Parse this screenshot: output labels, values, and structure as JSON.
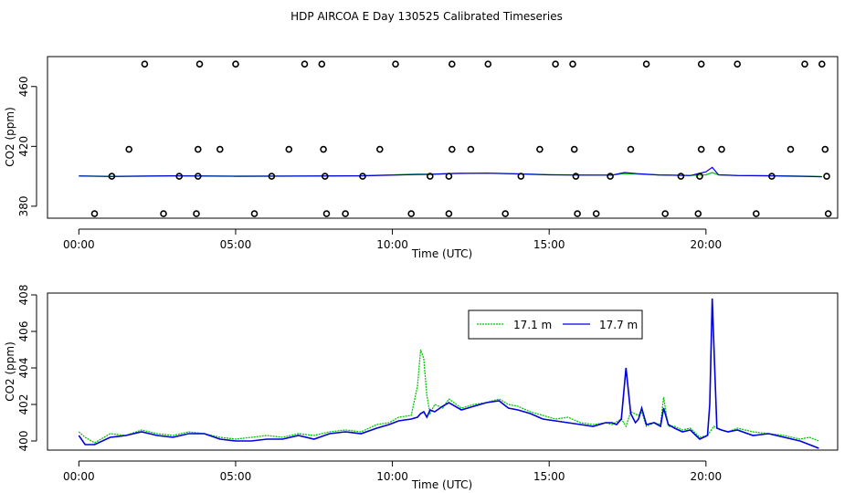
{
  "figure_title": "HDP AIRCOA E  Day 130525  Calibrated Timeseries",
  "colors": {
    "series_17_1m": "#00c800",
    "series_17_7m": "#0000dd",
    "points": "#000000",
    "axes": "#000000"
  },
  "chart_data": [
    {
      "type": "scatter",
      "xlabel": "Time (UTC)",
      "ylabel": "CO2 (ppm)",
      "xlim": [
        -1,
        24.2
      ],
      "ylim": [
        372,
        480
      ],
      "x_ticks": [
        0,
        5,
        10,
        15,
        20
      ],
      "x_tick_labels": [
        "00:00",
        "05:00",
        "10:00",
        "15:00",
        "20:00"
      ],
      "y_ticks": [
        380,
        420,
        460
      ],
      "y_tick_labels": [
        "380",
        "420",
        "460"
      ],
      "grid": false,
      "points_x_unit": "hours UTC",
      "calibration_points": [
        {
          "x": 2.1,
          "y": 475
        },
        {
          "x": 3.85,
          "y": 475
        },
        {
          "x": 5.0,
          "y": 475
        },
        {
          "x": 7.2,
          "y": 475
        },
        {
          "x": 7.75,
          "y": 475
        },
        {
          "x": 10.1,
          "y": 475
        },
        {
          "x": 11.9,
          "y": 475
        },
        {
          "x": 13.05,
          "y": 475
        },
        {
          "x": 15.2,
          "y": 475
        },
        {
          "x": 15.75,
          "y": 475
        },
        {
          "x": 18.1,
          "y": 475
        },
        {
          "x": 19.85,
          "y": 475
        },
        {
          "x": 21.0,
          "y": 475
        },
        {
          "x": 23.15,
          "y": 475
        },
        {
          "x": 23.7,
          "y": 475
        },
        {
          "x": 1.6,
          "y": 418
        },
        {
          "x": 3.8,
          "y": 418
        },
        {
          "x": 4.5,
          "y": 418
        },
        {
          "x": 6.7,
          "y": 418
        },
        {
          "x": 7.8,
          "y": 418
        },
        {
          "x": 9.6,
          "y": 418
        },
        {
          "x": 11.9,
          "y": 418
        },
        {
          "x": 12.5,
          "y": 418
        },
        {
          "x": 14.7,
          "y": 418
        },
        {
          "x": 15.8,
          "y": 418
        },
        {
          "x": 17.6,
          "y": 418
        },
        {
          "x": 19.85,
          "y": 418
        },
        {
          "x": 20.5,
          "y": 418
        },
        {
          "x": 22.7,
          "y": 418
        },
        {
          "x": 23.8,
          "y": 418
        },
        {
          "x": 1.05,
          "y": 400
        },
        {
          "x": 3.2,
          "y": 400
        },
        {
          "x": 3.8,
          "y": 400
        },
        {
          "x": 6.15,
          "y": 400
        },
        {
          "x": 7.85,
          "y": 400
        },
        {
          "x": 9.05,
          "y": 400
        },
        {
          "x": 11.2,
          "y": 400
        },
        {
          "x": 11.8,
          "y": 400
        },
        {
          "x": 14.1,
          "y": 400
        },
        {
          "x": 15.85,
          "y": 400
        },
        {
          "x": 16.95,
          "y": 400
        },
        {
          "x": 19.2,
          "y": 400
        },
        {
          "x": 19.8,
          "y": 400
        },
        {
          "x": 22.1,
          "y": 400
        },
        {
          "x": 23.85,
          "y": 400
        },
        {
          "x": 0.5,
          "y": 375
        },
        {
          "x": 2.7,
          "y": 375
        },
        {
          "x": 3.75,
          "y": 375
        },
        {
          "x": 5.6,
          "y": 375
        },
        {
          "x": 7.9,
          "y": 375
        },
        {
          "x": 8.5,
          "y": 375
        },
        {
          "x": 10.6,
          "y": 375
        },
        {
          "x": 11.8,
          "y": 375
        },
        {
          "x": 13.6,
          "y": 375
        },
        {
          "x": 15.9,
          "y": 375
        },
        {
          "x": 16.5,
          "y": 375
        },
        {
          "x": 18.7,
          "y": 375
        },
        {
          "x": 19.75,
          "y": 375
        },
        {
          "x": 21.6,
          "y": 375
        },
        {
          "x": 23.9,
          "y": 375
        }
      ],
      "lines": [
        {
          "series": 0,
          "x": [
            0,
            1,
            3,
            5,
            7,
            9,
            10.8,
            11.2,
            12,
            13,
            14,
            15,
            16,
            17,
            17.4,
            17.8,
            18.5,
            19.5,
            20,
            20.2,
            20.4,
            21,
            22,
            23,
            23.7
          ],
          "y": [
            400.3,
            400,
            400.4,
            400.1,
            400.2,
            400.4,
            401.5,
            401.5,
            402,
            402.2,
            401.7,
            401.1,
            400.9,
            400.8,
            401.8,
            401.5,
            400.9,
            400.6,
            401,
            402.5,
            401,
            400.6,
            400.5,
            400.2,
            399.9
          ]
        },
        {
          "series": 1,
          "x": [
            0,
            1,
            3,
            5,
            7,
            9,
            10.8,
            11.2,
            12,
            13,
            14,
            15,
            16,
            17,
            17.4,
            17.8,
            18.5,
            19.5,
            20,
            20.2,
            20.4,
            21,
            22,
            23,
            23.7
          ],
          "y": [
            400.2,
            399.9,
            400.3,
            400,
            400.1,
            400.3,
            401.2,
            401.3,
            401.9,
            402.1,
            401.6,
            401,
            400.8,
            400.8,
            402.5,
            401.8,
            400.9,
            400.5,
            403,
            406,
            401,
            400.5,
            400.3,
            400,
            399.7
          ]
        }
      ]
    },
    {
      "type": "line",
      "xlabel": "Time (UTC)",
      "ylabel": "CO2 (ppm)",
      "xlim": [
        -1,
        24.2
      ],
      "ylim": [
        399.5,
        408.1
      ],
      "x_ticks": [
        0,
        5,
        10,
        15,
        20
      ],
      "x_tick_labels": [
        "00:00",
        "05:00",
        "10:00",
        "15:00",
        "20:00"
      ],
      "y_ticks": [
        400,
        402,
        404,
        406,
        408
      ],
      "y_tick_labels": [
        "400",
        "402",
        "404",
        "406",
        "408"
      ],
      "grid": false,
      "legend_position": "top-center-right",
      "x_unit": "hours UTC",
      "series": [
        {
          "name": "17.1 m",
          "x": [
            0,
            0.2,
            0.5,
            1,
            1.5,
            2,
            2.5,
            3,
            3.5,
            4,
            4.5,
            5,
            5.5,
            6,
            6.5,
            7,
            7.5,
            8,
            8.5,
            9,
            9.5,
            9.9,
            10.2,
            10.6,
            10.8,
            10.9,
            11.0,
            11.1,
            11.2,
            11.35,
            11.6,
            11.8,
            12.2,
            12.6,
            13.0,
            13.4,
            13.7,
            14.0,
            14.4,
            14.8,
            15.2,
            15.6,
            16.0,
            16.4,
            16.8,
            17.0,
            17.3,
            17.45,
            17.6,
            17.85,
            17.95,
            18.1,
            18.35,
            18.55,
            18.65,
            18.8,
            19.0,
            19.25,
            19.5,
            19.8,
            20.05,
            20.25,
            20.45,
            20.7,
            21.0,
            21.5,
            22.0,
            22.5,
            23.0,
            23.3,
            23.6
          ],
          "y": [
            400.5,
            400.2,
            399.9,
            400.4,
            400.3,
            400.6,
            400.4,
            400.3,
            400.5,
            400.4,
            400.2,
            400.1,
            400.2,
            400.3,
            400.2,
            400.4,
            400.3,
            400.5,
            400.6,
            400.5,
            400.9,
            401.0,
            401.3,
            401.4,
            403.0,
            405.0,
            404.5,
            402.5,
            401.5,
            402.0,
            401.8,
            402.3,
            401.8,
            402.0,
            402.1,
            402.3,
            402.0,
            401.9,
            401.6,
            401.4,
            401.2,
            401.3,
            401.0,
            400.9,
            401.0,
            400.9,
            401.2,
            400.8,
            401.6,
            401.4,
            401.6,
            400.8,
            401.0,
            400.9,
            402.4,
            400.8,
            400.8,
            400.6,
            400.7,
            400.2,
            400.3,
            400.8,
            400.6,
            400.5,
            400.7,
            400.5,
            400.4,
            400.3,
            400.1,
            400.2,
            400.0
          ]
        },
        {
          "name": "17.7 m",
          "x": [
            0,
            0.2,
            0.5,
            1,
            1.5,
            2,
            2.5,
            3,
            3.5,
            4,
            4.5,
            5,
            5.5,
            6,
            6.5,
            7,
            7.5,
            8,
            8.5,
            9,
            9.5,
            9.9,
            10.2,
            10.6,
            10.8,
            10.9,
            11.0,
            11.1,
            11.2,
            11.35,
            11.6,
            11.8,
            12.2,
            12.6,
            13.0,
            13.4,
            13.7,
            14.0,
            14.4,
            14.8,
            15.2,
            15.6,
            16.0,
            16.4,
            16.8,
            17.0,
            17.15,
            17.3,
            17.45,
            17.6,
            17.75,
            17.85,
            17.95,
            18.1,
            18.35,
            18.55,
            18.65,
            18.8,
            19.0,
            19.25,
            19.5,
            19.8,
            20.05,
            20.12,
            20.2,
            20.28,
            20.35,
            20.5,
            20.7,
            21.0,
            21.5,
            22.0,
            22.5,
            23.0,
            23.3,
            23.6
          ],
          "y": [
            400.3,
            399.8,
            399.8,
            400.2,
            400.3,
            400.5,
            400.3,
            400.2,
            400.4,
            400.4,
            400.1,
            400.0,
            400.0,
            400.1,
            400.1,
            400.3,
            400.1,
            400.4,
            400.5,
            400.4,
            400.7,
            400.9,
            401.1,
            401.2,
            401.3,
            401.5,
            401.6,
            401.3,
            401.7,
            401.6,
            401.9,
            402.1,
            401.7,
            401.9,
            402.1,
            402.2,
            401.8,
            401.7,
            401.5,
            401.2,
            401.1,
            401.0,
            400.9,
            400.8,
            401.0,
            401.0,
            400.9,
            401.2,
            404.0,
            401.5,
            401.0,
            401.2,
            401.8,
            400.9,
            401.0,
            400.8,
            401.8,
            400.9,
            400.7,
            400.5,
            400.6,
            400.1,
            400.3,
            402.0,
            407.8,
            404.0,
            400.7,
            400.6,
            400.5,
            400.6,
            400.3,
            400.4,
            400.2,
            400.0,
            399.8,
            399.6
          ]
        }
      ]
    }
  ]
}
